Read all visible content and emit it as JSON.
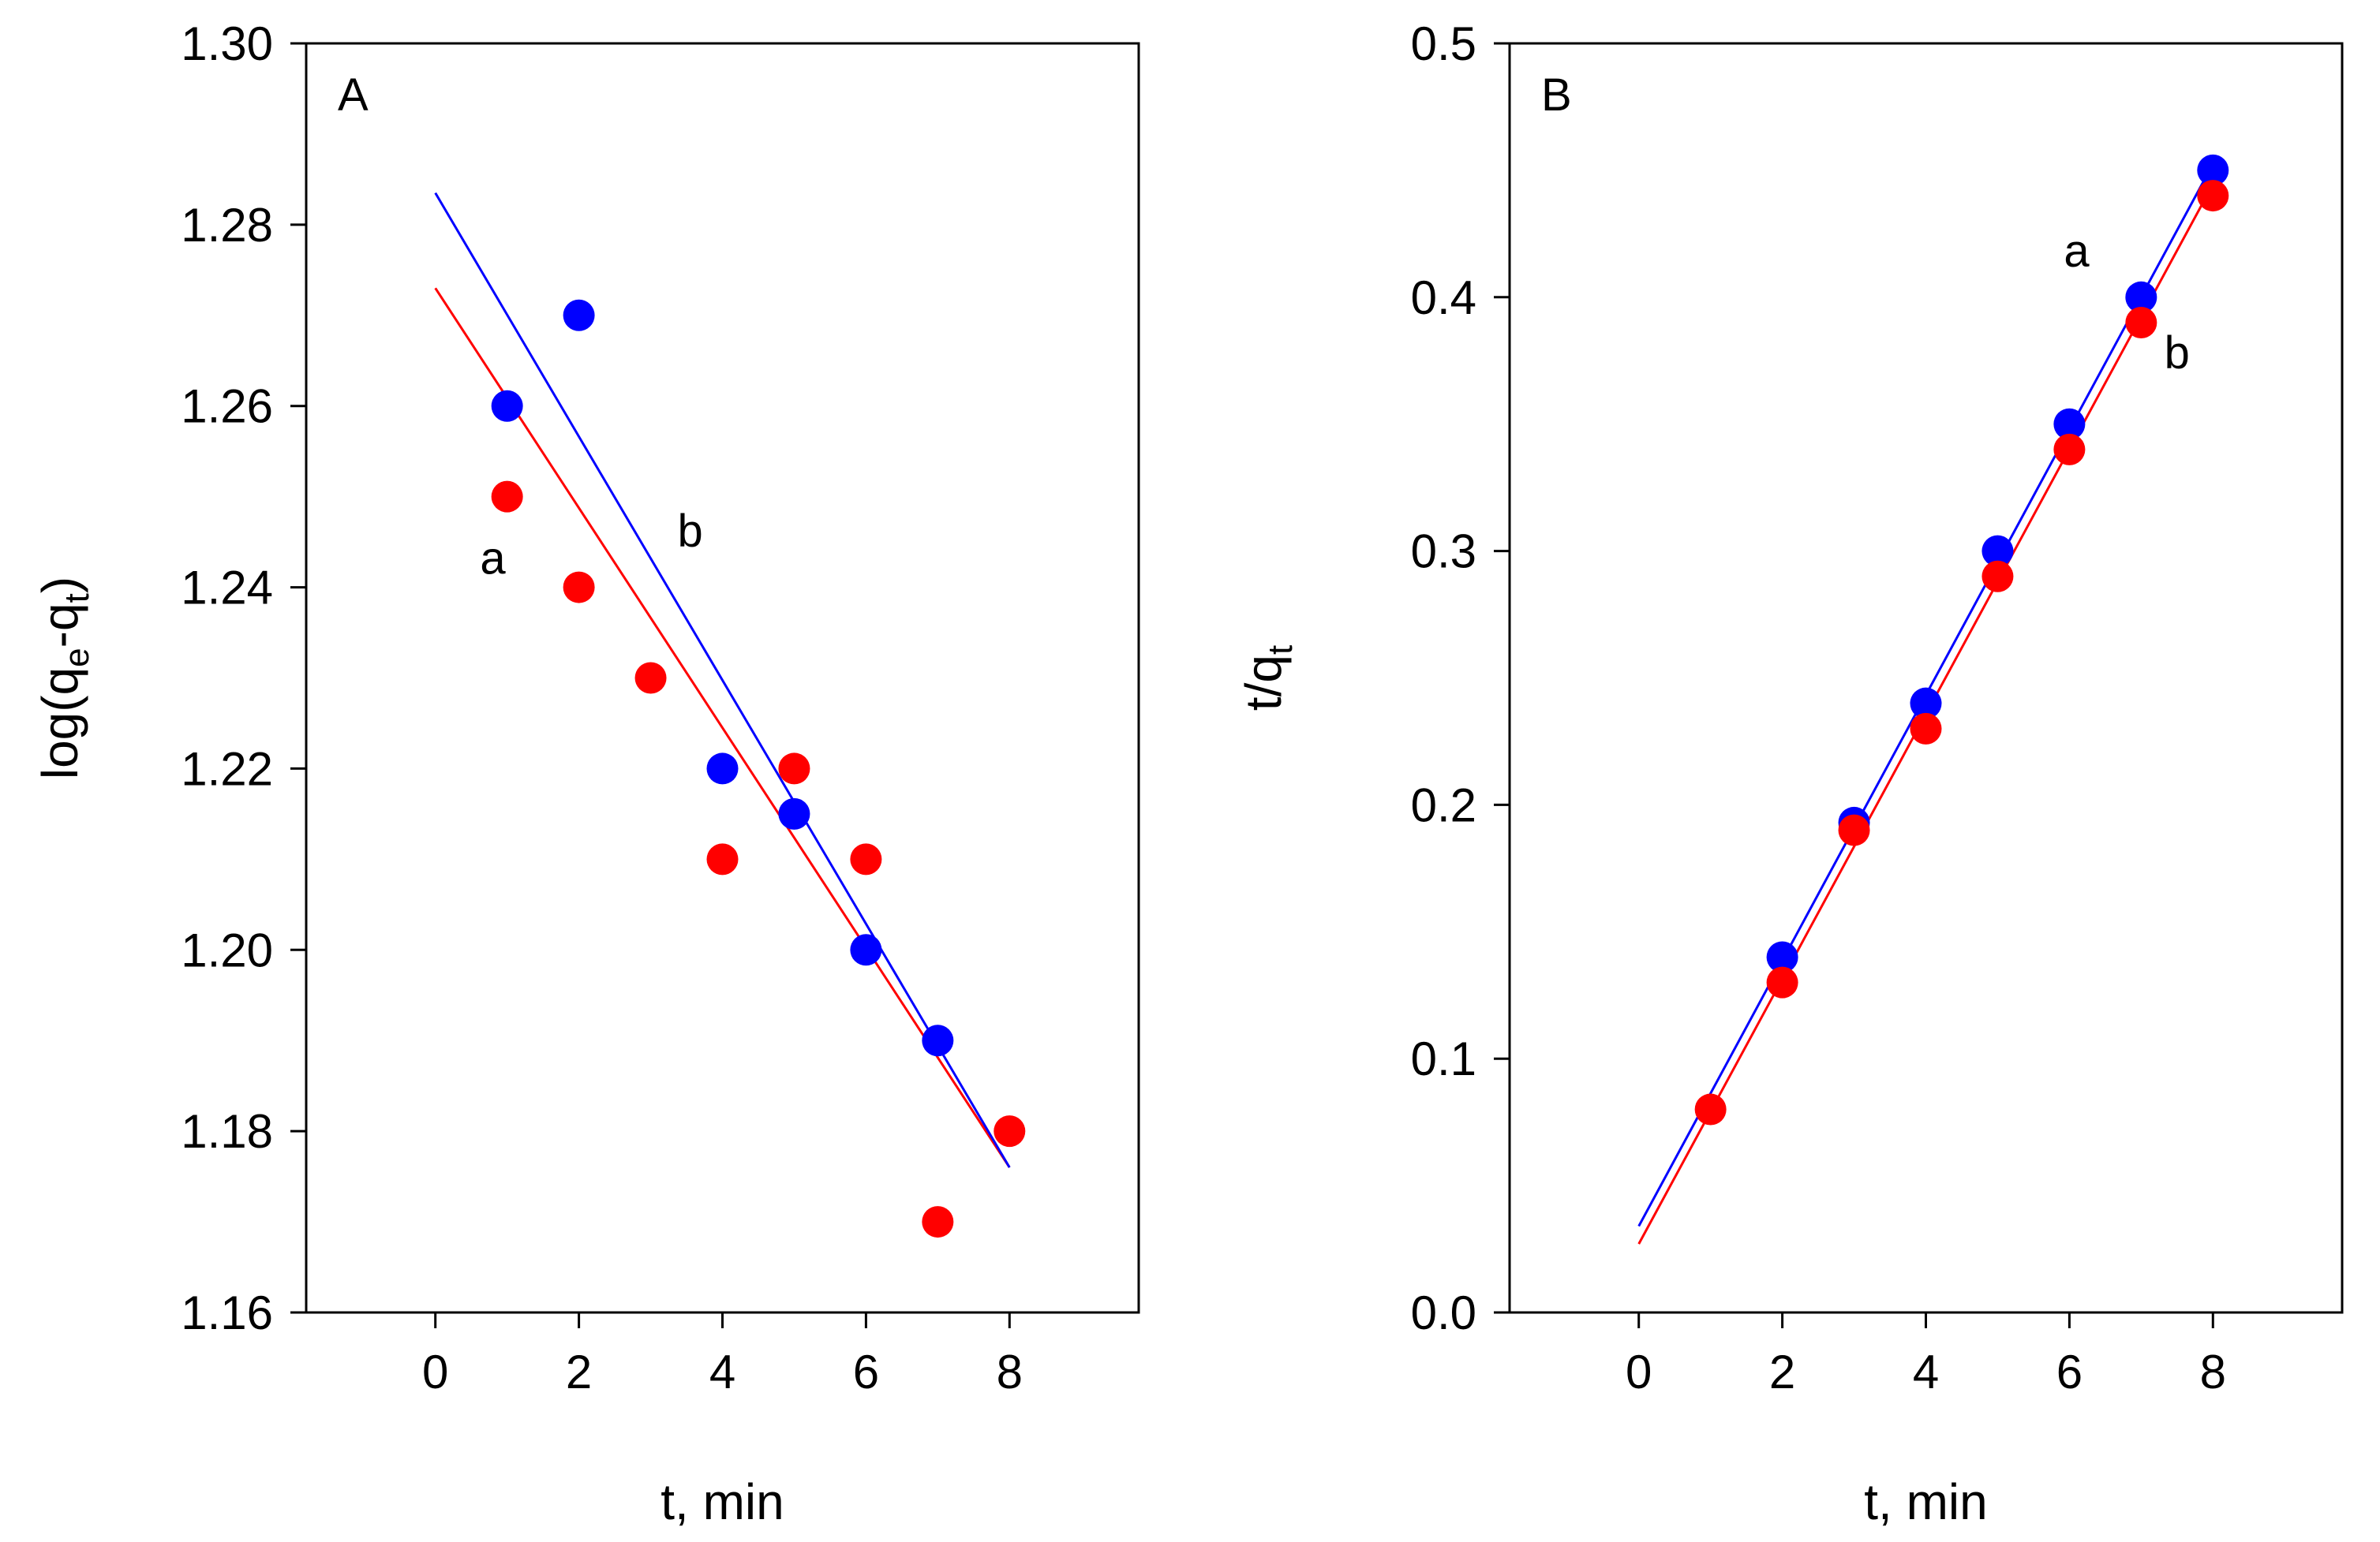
{
  "colors": {
    "series_a": "#ff0000",
    "series_b": "#0000ff",
    "axis": "#000000"
  },
  "chart_data": [
    {
      "panel": "A",
      "type": "scatter",
      "xlabel": "t, min",
      "ylabel": {
        "main": "log(q",
        "sub1": "e",
        "mid": "-q",
        "sub2": "t",
        "end": ")"
      },
      "xlim": [
        -1.8,
        9.8
      ],
      "ylim": [
        1.16,
        1.3
      ],
      "xticks": [
        0,
        2,
        4,
        6,
        8
      ],
      "yticks": [
        1.16,
        1.18,
        1.2,
        1.22,
        1.24,
        1.26,
        1.28,
        1.3
      ],
      "xtick_labels": [
        "0",
        "2",
        "4",
        "6",
        "8"
      ],
      "ytick_labels": [
        "1.16",
        "1.18",
        "1.20",
        "1.22",
        "1.24",
        "1.26",
        "1.28",
        "1.30"
      ],
      "series": [
        {
          "name": "a",
          "color": "#ff0000",
          "x": [
            1,
            2,
            3,
            4,
            5,
            6,
            7,
            8
          ],
          "y": [
            1.25,
            1.24,
            1.23,
            1.21,
            1.22,
            1.21,
            1.17,
            1.18
          ],
          "fit": {
            "x": [
              0,
              8
            ],
            "y": [
              1.273,
              1.176
            ]
          },
          "label": "a",
          "label_at": {
            "x": 0.8,
            "y": 1.2415
          }
        },
        {
          "name": "b",
          "color": "#0000ff",
          "x": [
            1,
            2,
            4,
            5,
            6,
            7
          ],
          "y": [
            1.26,
            1.27,
            1.22,
            1.215,
            1.2,
            1.19
          ],
          "fit": {
            "x": [
              0,
              8
            ],
            "y": [
              1.2835,
              1.176
            ]
          },
          "label": "b",
          "label_at": {
            "x": 3.55,
            "y": 1.2445
          }
        }
      ]
    },
    {
      "panel": "B",
      "type": "scatter",
      "xlabel": "t, min",
      "ylabel": {
        "main": "t/q",
        "sub1": "t"
      },
      "xlim": [
        -1.8,
        9.8
      ],
      "ylim": [
        0.0,
        0.5
      ],
      "xticks": [
        0,
        2,
        4,
        6,
        8
      ],
      "yticks": [
        0.0,
        0.1,
        0.2,
        0.3,
        0.4,
        0.5
      ],
      "xtick_labels": [
        "0",
        "2",
        "4",
        "6",
        "8"
      ],
      "ytick_labels": [
        "0.0",
        "0.1",
        "0.2",
        "0.3",
        "0.4",
        "0.5"
      ],
      "series": [
        {
          "name": "a",
          "color": "#0000ff",
          "x": [
            2,
            3,
            4,
            5,
            6,
            7,
            8
          ],
          "y": [
            0.14,
            0.193,
            0.24,
            0.3,
            0.35,
            0.4,
            0.45
          ],
          "fit": {
            "x": [
              0,
              8
            ],
            "y": [
              0.034,
              0.4525
            ]
          },
          "label": "a",
          "label_at": {
            "x": 6.1,
            "y": 0.412
          }
        },
        {
          "name": "b",
          "color": "#ff0000",
          "x": [
            1,
            2,
            3,
            4,
            5,
            6,
            7,
            8
          ],
          "y": [
            0.08,
            0.13,
            0.19,
            0.23,
            0.29,
            0.34,
            0.39,
            0.44
          ],
          "fit": {
            "x": [
              0,
              8
            ],
            "y": [
              0.027,
              0.4445
            ]
          },
          "label": "b",
          "label_at": {
            "x": 7.5,
            "y": 0.372
          }
        }
      ]
    }
  ]
}
